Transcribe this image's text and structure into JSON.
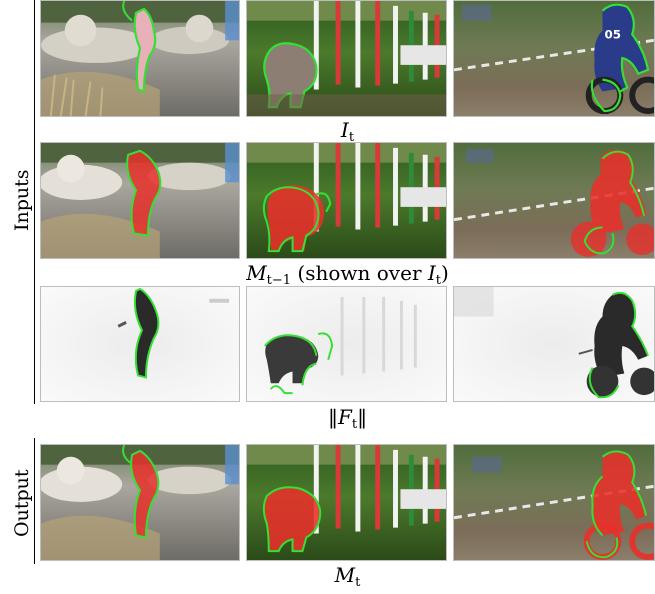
{
  "group_labels": {
    "inputs": "Inputs",
    "output": "Output"
  },
  "captions": {
    "row1": {
      "symbol": "I",
      "sub": "t",
      "rest": ""
    },
    "row2": {
      "symbol": "M",
      "sub": "t−1",
      "rest": " (shown over ",
      "inner_symbol": "I",
      "inner_sub": "t",
      "close": ")"
    },
    "row3": {
      "symbol": "F",
      "sub": "t",
      "norm": "‖"
    },
    "row4": {
      "symbol": "M",
      "sub": "t"
    }
  },
  "race_number": "05",
  "colors": {
    "contour": "#33e033",
    "mask": "#e8302a",
    "grass": "#3d6b27",
    "sky": "#8fa46a",
    "plaza": "#8a8a86",
    "flow_bg": "#f4f4f4",
    "flow_dark": "#2a2a2a"
  },
  "columns": [
    "fountain-dancer",
    "dog-agility",
    "motocross"
  ],
  "rows": [
    "input-image",
    "previous-mask",
    "optical-flow",
    "output-mask"
  ]
}
